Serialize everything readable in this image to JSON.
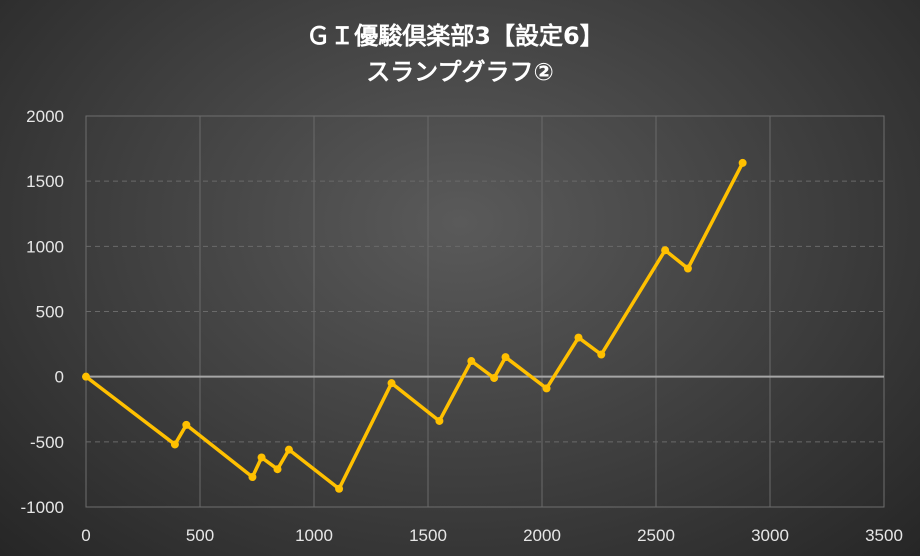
{
  "chart_data": {
    "type": "line",
    "title_line1": "ＧＩ優駿倶楽部3【設定6】",
    "title_line2": "スランプグラフ②",
    "xlabel": "",
    "ylabel": "",
    "xlim": [
      0,
      3500
    ],
    "ylim": [
      -1000,
      2000
    ],
    "x_ticks": [
      "0",
      "500",
      "1000",
      "1500",
      "2000",
      "2500",
      "3000",
      "3500"
    ],
    "y_ticks": [
      "2000",
      "1500",
      "1000",
      "500",
      "0",
      "-500",
      "-1000"
    ],
    "grid": true,
    "legend": "none",
    "line_color": "#ffc000",
    "series": [
      {
        "x": [
          0,
          390,
          440,
          730,
          770,
          840,
          890,
          1110,
          1340,
          1550,
          1690,
          1790,
          1840,
          2020,
          2160,
          2260,
          2540,
          2640,
          2880
        ],
        "y": [
          0,
          -520,
          -370,
          -770,
          -620,
          -710,
          -560,
          -860,
          -50,
          -340,
          120,
          -10,
          150,
          -90,
          300,
          170,
          970,
          830,
          1640
        ]
      }
    ]
  }
}
